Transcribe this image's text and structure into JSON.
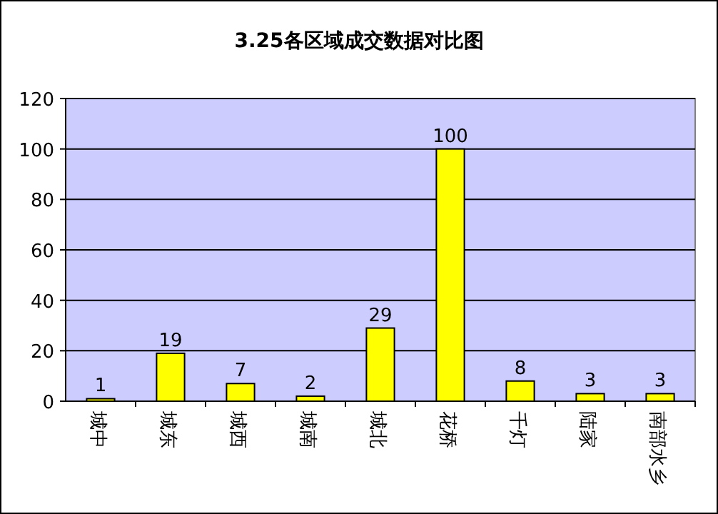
{
  "chart_data": {
    "type": "bar",
    "title": "3.25各区域成交数据对比图",
    "categories": [
      "城中",
      "城东",
      "城西",
      "城南",
      "城北",
      "花桥",
      "千灯",
      "陆家",
      "南部水乡"
    ],
    "values": [
      1,
      19,
      7,
      2,
      29,
      100,
      8,
      3,
      3
    ],
    "color": "#ffff00",
    "ylim": [
      0,
      120
    ],
    "yticks": [
      0,
      20,
      40,
      60,
      80,
      100,
      120
    ],
    "grid": "y",
    "data_labels": true
  }
}
